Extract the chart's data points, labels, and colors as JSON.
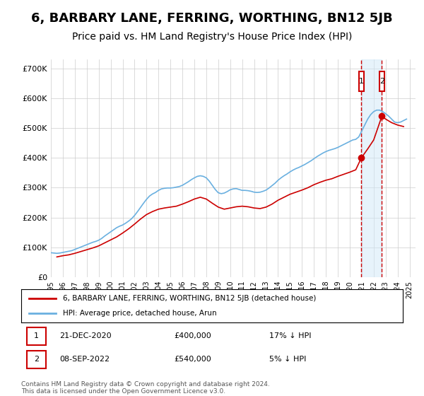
{
  "title": "6, BARBARY LANE, FERRING, WORTHING, BN12 5JB",
  "subtitle": "Price paid vs. HM Land Registry's House Price Index (HPI)",
  "title_fontsize": 13,
  "subtitle_fontsize": 10,
  "hpi_color": "#6ab0e0",
  "property_color": "#cc0000",
  "background_color": "#ffffff",
  "grid_color": "#cccccc",
  "annotation_box_color": "#cc0000",
  "shade_color": "#d0e8f8",
  "ylabel_ticks": [
    "£0",
    "£100K",
    "£200K",
    "£300K",
    "£400K",
    "£500K",
    "£600K",
    "£700K"
  ],
  "ytick_values": [
    0,
    100000,
    200000,
    300000,
    400000,
    500000,
    600000,
    700000
  ],
  "ylim": [
    0,
    730000
  ],
  "xlim_start": 1995.5,
  "xlim_end": 2025.5,
  "xtick_years": [
    1995,
    1996,
    1997,
    1998,
    1999,
    2000,
    2001,
    2002,
    2003,
    2004,
    2005,
    2006,
    2007,
    2008,
    2009,
    2010,
    2011,
    2012,
    2013,
    2014,
    2015,
    2016,
    2017,
    2018,
    2019,
    2020,
    2021,
    2022,
    2023,
    2024,
    2025
  ],
  "transaction1_x": 2020.97,
  "transaction1_y": 400000,
  "transaction1_label": "1",
  "transaction1_date": "21-DEC-2020",
  "transaction1_price": "£400,000",
  "transaction1_hpi": "17% ↓ HPI",
  "transaction2_x": 2022.69,
  "transaction2_y": 540000,
  "transaction2_label": "2",
  "transaction2_date": "08-SEP-2022",
  "transaction2_price": "£540,000",
  "transaction2_hpi": "5% ↓ HPI",
  "legend_property": "6, BARBARY LANE, FERRING, WORTHING, BN12 5JB (detached house)",
  "legend_hpi": "HPI: Average price, detached house, Arun",
  "footnote": "Contains HM Land Registry data © Crown copyright and database right 2024.\nThis data is licensed under the Open Government Licence v3.0.",
  "hpi_years": [
    1995.0,
    1995.25,
    1995.5,
    1995.75,
    1996.0,
    1996.25,
    1996.5,
    1996.75,
    1997.0,
    1997.25,
    1997.5,
    1997.75,
    1998.0,
    1998.25,
    1998.5,
    1998.75,
    1999.0,
    1999.25,
    1999.5,
    1999.75,
    2000.0,
    2000.25,
    2000.5,
    2000.75,
    2001.0,
    2001.25,
    2001.5,
    2001.75,
    2002.0,
    2002.25,
    2002.5,
    2002.75,
    2003.0,
    2003.25,
    2003.5,
    2003.75,
    2004.0,
    2004.25,
    2004.5,
    2004.75,
    2005.0,
    2005.25,
    2005.5,
    2005.75,
    2006.0,
    2006.25,
    2006.5,
    2006.75,
    2007.0,
    2007.25,
    2007.5,
    2007.75,
    2008.0,
    2008.25,
    2008.5,
    2008.75,
    2009.0,
    2009.25,
    2009.5,
    2009.75,
    2010.0,
    2010.25,
    2010.5,
    2010.75,
    2011.0,
    2011.25,
    2011.5,
    2011.75,
    2012.0,
    2012.25,
    2012.5,
    2012.75,
    2013.0,
    2013.25,
    2013.5,
    2013.75,
    2014.0,
    2014.25,
    2014.5,
    2014.75,
    2015.0,
    2015.25,
    2015.5,
    2015.75,
    2016.0,
    2016.25,
    2016.5,
    2016.75,
    2017.0,
    2017.25,
    2017.5,
    2017.75,
    2018.0,
    2018.25,
    2018.5,
    2018.75,
    2019.0,
    2019.25,
    2019.5,
    2019.75,
    2020.0,
    2020.25,
    2020.5,
    2020.75,
    2021.0,
    2021.25,
    2021.5,
    2021.75,
    2022.0,
    2022.25,
    2022.5,
    2022.75,
    2023.0,
    2023.25,
    2023.5,
    2023.75,
    2024.0,
    2024.25,
    2024.5,
    2024.75
  ],
  "hpi_values": [
    82000,
    81000,
    80000,
    81000,
    83000,
    85000,
    87000,
    89000,
    93000,
    97000,
    101000,
    105000,
    109000,
    113000,
    117000,
    120000,
    124000,
    130000,
    138000,
    145000,
    152000,
    159000,
    166000,
    171000,
    175000,
    181000,
    188000,
    196000,
    207000,
    220000,
    234000,
    248000,
    261000,
    272000,
    279000,
    284000,
    291000,
    296000,
    298000,
    299000,
    299000,
    300000,
    302000,
    304000,
    308000,
    314000,
    320000,
    327000,
    333000,
    338000,
    340000,
    338000,
    333000,
    322000,
    308000,
    294000,
    283000,
    280000,
    282000,
    287000,
    293000,
    296000,
    297000,
    294000,
    291000,
    291000,
    290000,
    288000,
    285000,
    284000,
    285000,
    288000,
    292000,
    299000,
    307000,
    315000,
    325000,
    333000,
    340000,
    346000,
    353000,
    359000,
    364000,
    368000,
    373000,
    378000,
    384000,
    390000,
    397000,
    404000,
    410000,
    416000,
    421000,
    425000,
    428000,
    431000,
    435000,
    440000,
    445000,
    450000,
    455000,
    460000,
    462000,
    470000,
    490000,
    510000,
    530000,
    545000,
    555000,
    560000,
    560000,
    555000,
    548000,
    540000,
    530000,
    520000,
    518000,
    520000,
    525000,
    530000
  ],
  "property_years": [
    1995.5,
    1996.0,
    1996.5,
    1997.0,
    1997.5,
    1998.0,
    1998.5,
    1999.0,
    1999.5,
    2000.0,
    2000.5,
    2001.0,
    2001.5,
    2002.0,
    2002.5,
    2003.0,
    2003.5,
    2004.0,
    2004.5,
    2005.0,
    2005.5,
    2006.0,
    2006.5,
    2007.0,
    2007.5,
    2008.0,
    2008.5,
    2009.0,
    2009.5,
    2010.0,
    2010.5,
    2011.0,
    2011.5,
    2012.0,
    2012.5,
    2013.0,
    2013.5,
    2014.0,
    2014.5,
    2015.0,
    2015.5,
    2016.0,
    2016.5,
    2017.0,
    2017.5,
    2018.0,
    2018.5,
    2019.0,
    2019.5,
    2020.0,
    2020.5,
    2020.97,
    2021.5,
    2022.0,
    2022.69,
    2023.0,
    2023.5,
    2024.0,
    2024.5
  ],
  "property_values": [
    68000,
    72000,
    75000,
    80000,
    86000,
    92000,
    98000,
    105000,
    115000,
    125000,
    135000,
    148000,
    162000,
    178000,
    195000,
    210000,
    220000,
    228000,
    232000,
    235000,
    238000,
    245000,
    253000,
    262000,
    268000,
    262000,
    248000,
    235000,
    228000,
    232000,
    236000,
    238000,
    236000,
    232000,
    230000,
    235000,
    245000,
    258000,
    268000,
    278000,
    285000,
    292000,
    300000,
    310000,
    318000,
    325000,
    330000,
    338000,
    345000,
    352000,
    360000,
    400000,
    430000,
    460000,
    540000,
    530000,
    518000,
    510000,
    505000
  ]
}
